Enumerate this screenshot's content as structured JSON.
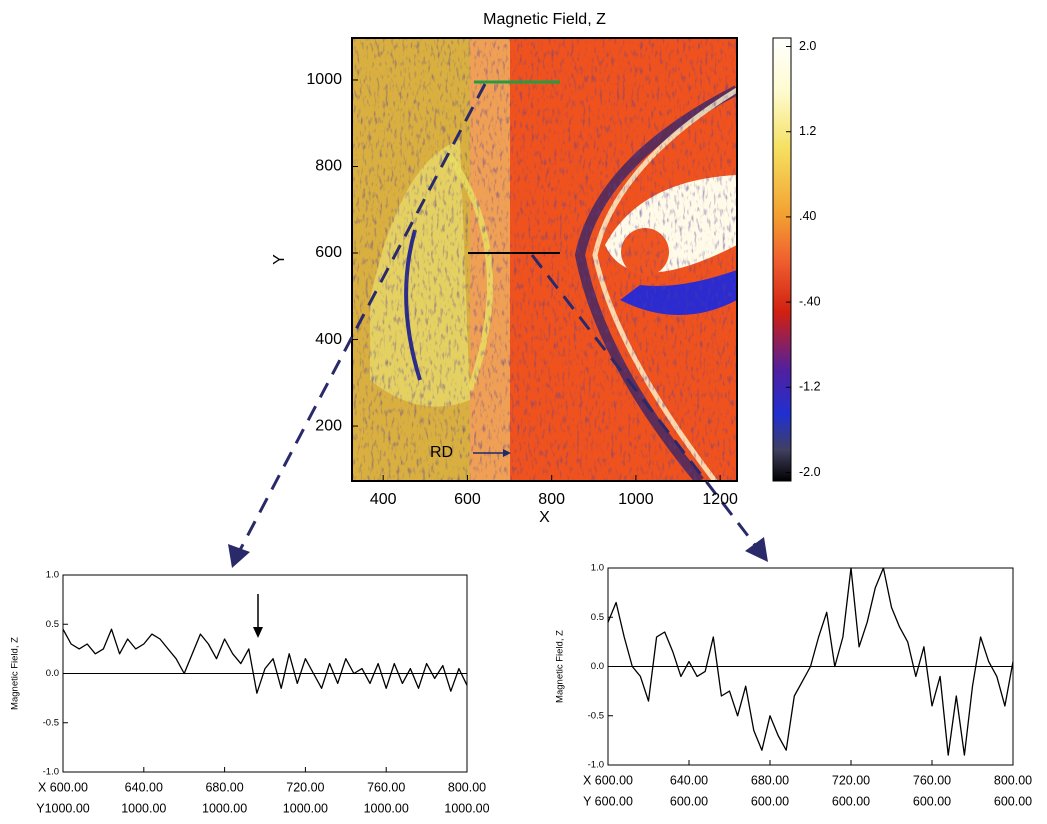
{
  "chart_data": [
    {
      "type": "heatmap",
      "title": "Magnetic Field, Z",
      "xlabel": "X",
      "ylabel": "Y",
      "xlim": [
        326,
        1240
      ],
      "ylim": [
        73,
        1097
      ],
      "xticks": [
        400,
        600,
        800,
        1000,
        1200
      ],
      "yticks": [
        200,
        400,
        600,
        800,
        1000
      ],
      "clim": [
        -2.08,
        2.08
      ],
      "cticks": [
        {
          "value": 2.0,
          "label": "2.0"
        },
        {
          "value": 1.2,
          "label": "1.2"
        },
        {
          "value": 0.4,
          "label": ".40"
        },
        {
          "value": -0.4,
          "label": "-.40"
        },
        {
          "value": -1.2,
          "label": "-1.2"
        },
        {
          "value": -2.0,
          "label": "-2.0"
        }
      ],
      "annotation": "RD"
    },
    {
      "type": "line",
      "ylabel": "Magnetic Field, Z",
      "color": "#000000",
      "xlim": [
        600,
        800
      ],
      "ylim": [
        -1.0,
        1.0
      ],
      "yticks": [
        {
          "value": 1.0,
          "label": "1.0"
        },
        {
          "value": 0.5,
          "label": "0.5"
        },
        {
          "value": 0.0,
          "label": "0.0"
        },
        {
          "value": -0.5,
          "label": "-0.5"
        },
        {
          "value": -1.0,
          "label": "-1.0"
        }
      ],
      "xticks": [
        {
          "value": 600,
          "label": "X 600.00"
        },
        {
          "value": 640,
          "label": "640.00"
        },
        {
          "value": 680,
          "label": "680.00"
        },
        {
          "value": 720,
          "label": "720.00"
        },
        {
          "value": 760,
          "label": "760.00"
        },
        {
          "value": 800,
          "label": "800.00"
        }
      ],
      "xticks_row2": [
        "Y1000.00",
        "1000.00",
        "1000.00",
        "1000.00",
        "1000.00",
        "1000.00"
      ],
      "x": [
        600,
        604,
        608,
        612,
        616,
        620,
        624,
        628,
        632,
        636,
        640,
        644,
        648,
        652,
        656,
        660,
        664,
        668,
        672,
        676,
        680,
        684,
        688,
        692,
        696,
        700,
        704,
        708,
        712,
        716,
        720,
        724,
        728,
        732,
        736,
        740,
        744,
        748,
        752,
        756,
        760,
        764,
        768,
        772,
        776,
        780,
        784,
        788,
        792,
        796,
        800
      ],
      "values": [
        0.45,
        0.3,
        0.25,
        0.3,
        0.2,
        0.25,
        0.45,
        0.2,
        0.35,
        0.25,
        0.3,
        0.4,
        0.35,
        0.25,
        0.15,
        0.0,
        0.2,
        0.4,
        0.3,
        0.15,
        0.35,
        0.2,
        0.1,
        0.25,
        -0.2,
        0.05,
        0.15,
        -0.15,
        0.2,
        -0.1,
        0.15,
        0.0,
        -0.15,
        0.1,
        -0.1,
        0.15,
        0.0,
        0.05,
        -0.1,
        0.1,
        -0.15,
        0.1,
        -0.1,
        0.05,
        -0.15,
        0.1,
        -0.05,
        0.08,
        -0.18,
        0.05,
        -0.12
      ]
    },
    {
      "type": "line",
      "ylabel": "Magnetic Field, Z",
      "color": "#000000",
      "xlim": [
        600,
        800
      ],
      "ylim": [
        -1.0,
        1.0
      ],
      "yticks": [
        {
          "value": 1.0,
          "label": "1.0"
        },
        {
          "value": 0.5,
          "label": "0.5"
        },
        {
          "value": 0.0,
          "label": "0.0"
        },
        {
          "value": -0.5,
          "label": "-0.5"
        },
        {
          "value": -1.0,
          "label": "-1.0"
        }
      ],
      "xticks": [
        {
          "value": 600,
          "label": "X 600.00"
        },
        {
          "value": 640,
          "label": "640.00"
        },
        {
          "value": 680,
          "label": "680.00"
        },
        {
          "value": 720,
          "label": "720.00"
        },
        {
          "value": 760,
          "label": "760.00"
        },
        {
          "value": 800,
          "label": "800.00"
        }
      ],
      "xticks_row2": [
        "Y 600.00",
        "600.00",
        "600.00",
        "600.00",
        "600.00",
        "600.00"
      ],
      "x": [
        600,
        604,
        608,
        612,
        616,
        620,
        624,
        628,
        632,
        636,
        640,
        644,
        648,
        652,
        656,
        660,
        664,
        668,
        672,
        676,
        680,
        684,
        688,
        692,
        696,
        700,
        704,
        708,
        712,
        716,
        720,
        724,
        728,
        732,
        736,
        740,
        744,
        748,
        752,
        756,
        760,
        764,
        768,
        772,
        776,
        780,
        784,
        788,
        792,
        796,
        800
      ],
      "values": [
        0.45,
        0.65,
        0.3,
        0.0,
        -0.1,
        -0.35,
        0.3,
        0.35,
        0.15,
        -0.1,
        0.05,
        -0.1,
        -0.05,
        0.3,
        -0.3,
        -0.25,
        -0.5,
        -0.2,
        -0.65,
        -0.85,
        -0.5,
        -0.7,
        -0.85,
        -0.3,
        -0.15,
        0.0,
        0.3,
        0.55,
        0.0,
        0.3,
        1.0,
        0.2,
        0.45,
        0.8,
        1.0,
        0.6,
        0.4,
        0.25,
        -0.1,
        0.2,
        -0.4,
        -0.1,
        -0.9,
        -0.3,
        -0.9,
        -0.2,
        0.3,
        0.05,
        -0.1,
        -0.4,
        0.05
      ]
    }
  ]
}
